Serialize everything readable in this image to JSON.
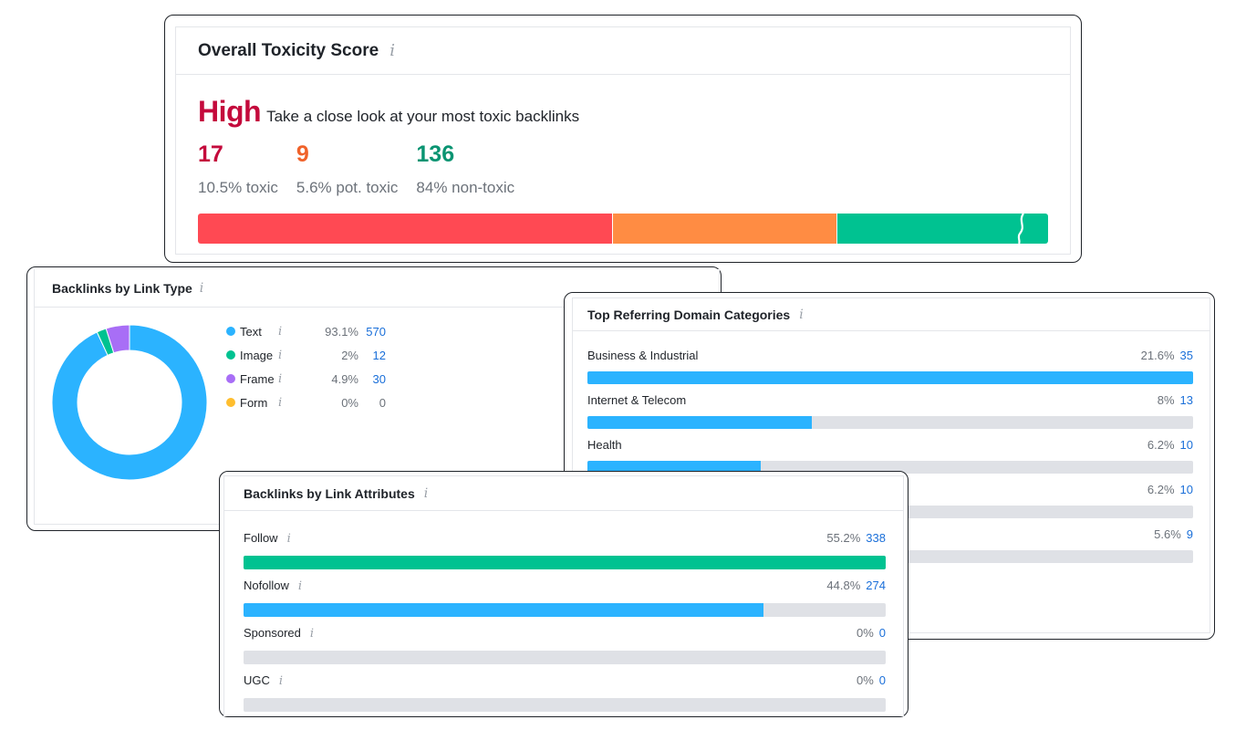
{
  "toxicity": {
    "title": "Overall Toxicity Score",
    "info_icon": "i",
    "level": "High",
    "message": "Take a close look at your most toxic backlinks",
    "stats": [
      {
        "count": "17",
        "label": "10.5% toxic",
        "color": "#c40a3c"
      },
      {
        "count": "9",
        "label": "5.6% pot. toxic",
        "color": "#f0622a"
      },
      {
        "count": "136",
        "label": "84% non-toxic",
        "color": "#0a9472"
      }
    ],
    "bar": [
      {
        "name": "toxic",
        "share": 0.487,
        "color": "#ff4953"
      },
      {
        "name": "potentially-toxic",
        "share": 0.264,
        "color": "#ff8c43"
      },
      {
        "name": "non-toxic",
        "share": 0.249,
        "color": "#00c291"
      }
    ]
  },
  "link_type": {
    "title": "Backlinks by Link Type",
    "info_icon": "i",
    "items": [
      {
        "label": "Text",
        "pct": "93.1%",
        "count": "570",
        "share": 0.931,
        "color": "#2bb3ff",
        "count_linked": true
      },
      {
        "label": "Image",
        "pct": "2%",
        "count": "12",
        "share": 0.02,
        "color": "#00c291",
        "count_linked": true
      },
      {
        "label": "Frame",
        "pct": "4.9%",
        "count": "30",
        "share": 0.049,
        "color": "#a86ef6",
        "count_linked": true
      },
      {
        "label": "Form",
        "pct": "0%",
        "count": "0",
        "share": 0.0,
        "color": "#ffbe2e",
        "count_linked": false
      }
    ]
  },
  "categories": {
    "title": "Top Referring Domain Categories",
    "info_icon": "i",
    "items": [
      {
        "label": "Business & Industrial",
        "pct": "21.6%",
        "count": "35",
        "fill": 1.0
      },
      {
        "label": "Internet & Telecom",
        "pct": "8%",
        "count": "13",
        "fill": 0.37
      },
      {
        "label": "Health",
        "pct": "6.2%",
        "count": "10",
        "fill": 0.286
      },
      {
        "label": "",
        "pct": "6.2%",
        "count": "10",
        "fill": 0.286
      },
      {
        "label": "",
        "pct": "5.6%",
        "count": "9",
        "fill": 0.257
      }
    ],
    "bar_color": "#2bb3ff"
  },
  "attributes": {
    "title": "Backlinks by Link Attributes",
    "info_icon": "i",
    "items": [
      {
        "label": "Follow",
        "pct": "55.2%",
        "count": "338",
        "fill": 1.0,
        "color": "#00c291"
      },
      {
        "label": "Nofollow",
        "pct": "44.8%",
        "count": "274",
        "fill": 0.81,
        "color": "#2bb3ff"
      },
      {
        "label": "Sponsored",
        "pct": "0%",
        "count": "0",
        "fill": 0.0,
        "color": "#2bb3ff"
      },
      {
        "label": "UGC",
        "pct": "0%",
        "count": "0",
        "fill": 0.0,
        "color": "#2bb3ff"
      }
    ]
  }
}
